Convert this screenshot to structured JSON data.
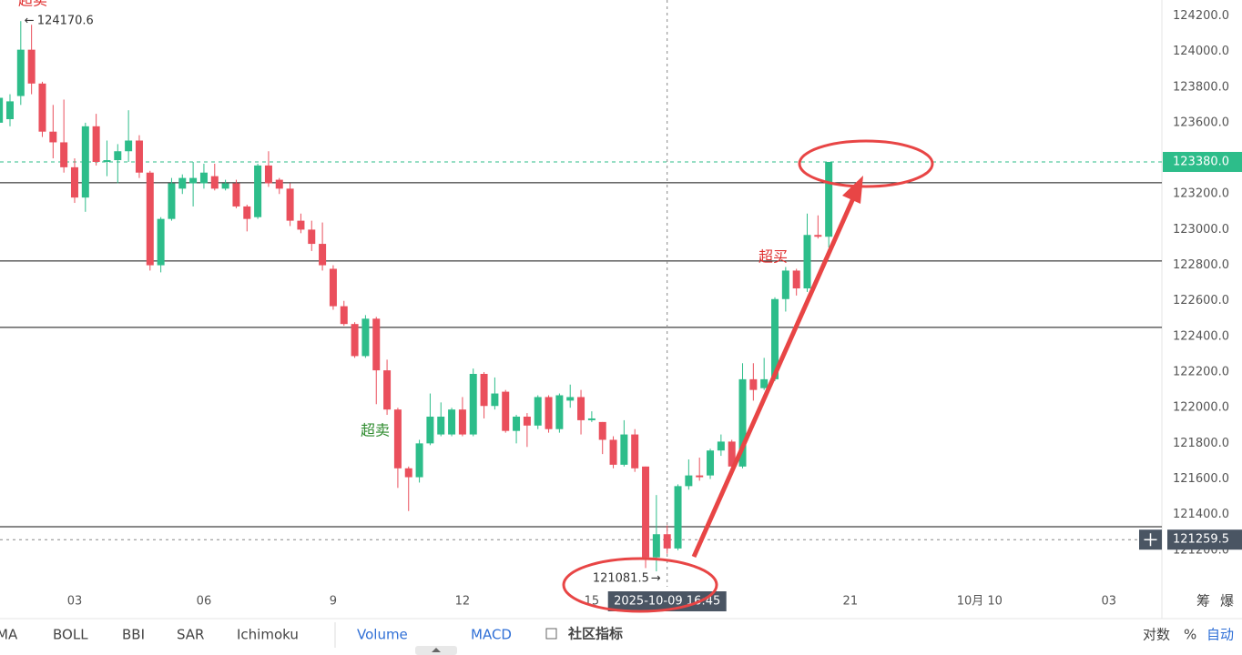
{
  "chart_data": {
    "type": "candlestick",
    "x": [
      1.25,
      1.5,
      1.75,
      2,
      2.25,
      2.5,
      2.75,
      3,
      3.25,
      3.5,
      3.75,
      4,
      4.25,
      4.5,
      4.75,
      5,
      5.25,
      5.5,
      5.75,
      6,
      6.25,
      6.5,
      6.75,
      7,
      7.25,
      7.5,
      7.75,
      8,
      8.25,
      8.5,
      8.75,
      9,
      9.25,
      9.5,
      9.75,
      10,
      10.25,
      10.5,
      10.75,
      11,
      11.25,
      11.5,
      11.75,
      12,
      12.25,
      12.5,
      12.75,
      13,
      13.25,
      13.5,
      13.75,
      14,
      14.25,
      14.5,
      14.75,
      15,
      15.25,
      15.5,
      15.75,
      16,
      16.25,
      16.5,
      16.75,
      17,
      17.25,
      17.5,
      17.75,
      18,
      18.25,
      18.5,
      18.75,
      19,
      19.25,
      19.5,
      19.75,
      20,
      20.25,
      20.5
    ],
    "open": [
      123600,
      123620,
      123750,
      124010,
      123820,
      123550,
      123490,
      123350,
      123180,
      123580,
      123380,
      123390,
      123440,
      123500,
      123320,
      122800,
      123060,
      123230,
      123260,
      123260,
      123300,
      123230,
      123260,
      123130,
      123070,
      123360,
      123280,
      123230,
      123050,
      123000,
      122920,
      122780,
      122570,
      122470,
      122290,
      122500,
      122210,
      121990,
      121660,
      121610,
      121800,
      121850,
      121850,
      121990,
      121850,
      122190,
      122010,
      122090,
      121870,
      121950,
      121900,
      122060,
      121880,
      122040,
      122060,
      121930,
      121920,
      121820,
      121680,
      121850,
      121670,
      121160,
      121290,
      121210,
      121560,
      121620,
      121620,
      121760,
      121810,
      121670,
      122160,
      122110,
      122160,
      122610,
      122770,
      122670,
      122970,
      122960
    ],
    "high": [
      123800,
      123760,
      124170.6,
      124150,
      123830,
      123700,
      123730,
      123400,
      123600,
      123650,
      123500,
      123480,
      123670,
      123530,
      123330,
      123070,
      123290,
      123310,
      123380,
      123370,
      123370,
      123280,
      123280,
      123140,
      123370,
      123440,
      123290,
      123260,
      123090,
      123050,
      123040,
      122800,
      122600,
      122480,
      122520,
      122510,
      122270,
      122000,
      121670,
      121820,
      122080,
      122030,
      122000,
      122060,
      122220,
      122200,
      122170,
      122100,
      121960,
      121970,
      122070,
      122070,
      122080,
      122130,
      122100,
      121980,
      121920,
      121840,
      121930,
      121880,
      121670,
      121510,
      121340,
      121570,
      121710,
      121720,
      121770,
      121850,
      121820,
      122250,
      122250,
      122280,
      122620,
      122790,
      122780,
      123090,
      123080,
      123380
    ],
    "low": [
      123560,
      123580,
      123700,
      123760,
      123520,
      123400,
      123320,
      123150,
      123100,
      123360,
      123300,
      123260,
      123380,
      123290,
      122770,
      122760,
      123050,
      123200,
      123130,
      123230,
      123220,
      123220,
      123120,
      122990,
      123060,
      123240,
      123200,
      123020,
      122980,
      122880,
      122770,
      122550,
      122460,
      122280,
      122280,
      122020,
      121960,
      121550,
      121420,
      121580,
      121790,
      121840,
      121840,
      121840,
      121840,
      121940,
      121990,
      121860,
      121800,
      121780,
      121880,
      121860,
      121860,
      122000,
      121850,
      121920,
      121740,
      121660,
      121670,
      121640,
      121100,
      121081.5,
      121180,
      121200,
      121540,
      121590,
      121600,
      121730,
      121640,
      121660,
      122040,
      122100,
      122150,
      122540,
      122630,
      122650,
      122950,
      122900
    ],
    "close": [
      123740,
      123720,
      124010,
      123820,
      123550,
      123490,
      123350,
      123180,
      123580,
      123380,
      123390,
      123440,
      123500,
      123320,
      122800,
      123060,
      123260,
      123290,
      123290,
      123320,
      123230,
      123260,
      123130,
      123060,
      123360,
      123260,
      123230,
      123050,
      123000,
      122920,
      122800,
      122570,
      122470,
      122290,
      122500,
      122210,
      121990,
      121660,
      121610,
      121800,
      121950,
      121950,
      121990,
      121850,
      122190,
      122010,
      122080,
      121870,
      121950,
      121900,
      122060,
      121880,
      122070,
      122060,
      121930,
      121940,
      121820,
      121680,
      121850,
      121660,
      121160,
      121290,
      121210,
      121560,
      121620,
      121610,
      121760,
      121810,
      121670,
      122160,
      122100,
      122160,
      122610,
      122770,
      122670,
      122970,
      122960,
      123380
    ],
    "up_color": "#2dbd8a",
    "down_color": "#ea4f5c",
    "xlim": [
      1.268,
      28.23
    ],
    "xticks": [
      {
        "value": 3,
        "label": "03"
      },
      {
        "value": 6,
        "label": "06"
      },
      9,
      12,
      15,
      21,
      {
        "value": 24,
        "label": "10月 10"
      },
      {
        "value": 27,
        "label": "03"
      }
    ],
    "ylim": [
      120995,
      124289
    ],
    "yticks": [
      {
        "value": 121200,
        "label": "121200.0"
      },
      {
        "value": 121400,
        "label": "121400.0"
      },
      {
        "value": 121600,
        "label": "121600.0"
      },
      {
        "value": 121800,
        "label": "121800.0"
      },
      {
        "value": 122000,
        "label": "122000.0"
      },
      {
        "value": 122200,
        "label": "122200.0"
      },
      {
        "value": 122400,
        "label": "122400.0"
      },
      {
        "value": 122600,
        "label": "122600.0"
      },
      {
        "value": 122800,
        "label": "122800.0"
      },
      {
        "value": 123000,
        "label": "123000.0"
      },
      {
        "value": 123200,
        "label": "123200.0"
      },
      {
        "value": 123400,
        "label": "123400.0"
      },
      {
        "value": 123600,
        "label": "123600.0"
      },
      {
        "value": 123800,
        "label": "123800.0"
      },
      {
        "value": 124000,
        "label": "124000.0"
      },
      {
        "value": 124200,
        "label": "124200.0"
      }
    ],
    "level_lines": [
      123263,
      122824,
      122451,
      121332
    ],
    "last_price": {
      "value": 123380,
      "label": "123380.0"
    },
    "crosshair": {
      "x": 16.75,
      "x_label": "2025-10-09 16:45",
      "price": 121259.5
    },
    "annotations": [
      "超卖",
      "超卖",
      "超买"
    ],
    "toolbar": {
      "indicators": [
        "MA",
        "BOLL",
        "BBI",
        "SAR",
        "Ichimoku"
      ],
      "sub": [
        "Volume",
        "MACD"
      ],
      "community": "社区指标",
      "right": [
        "对数",
        "%",
        "自动"
      ],
      "corner": [
        "筹",
        "爆"
      ]
    }
  }
}
